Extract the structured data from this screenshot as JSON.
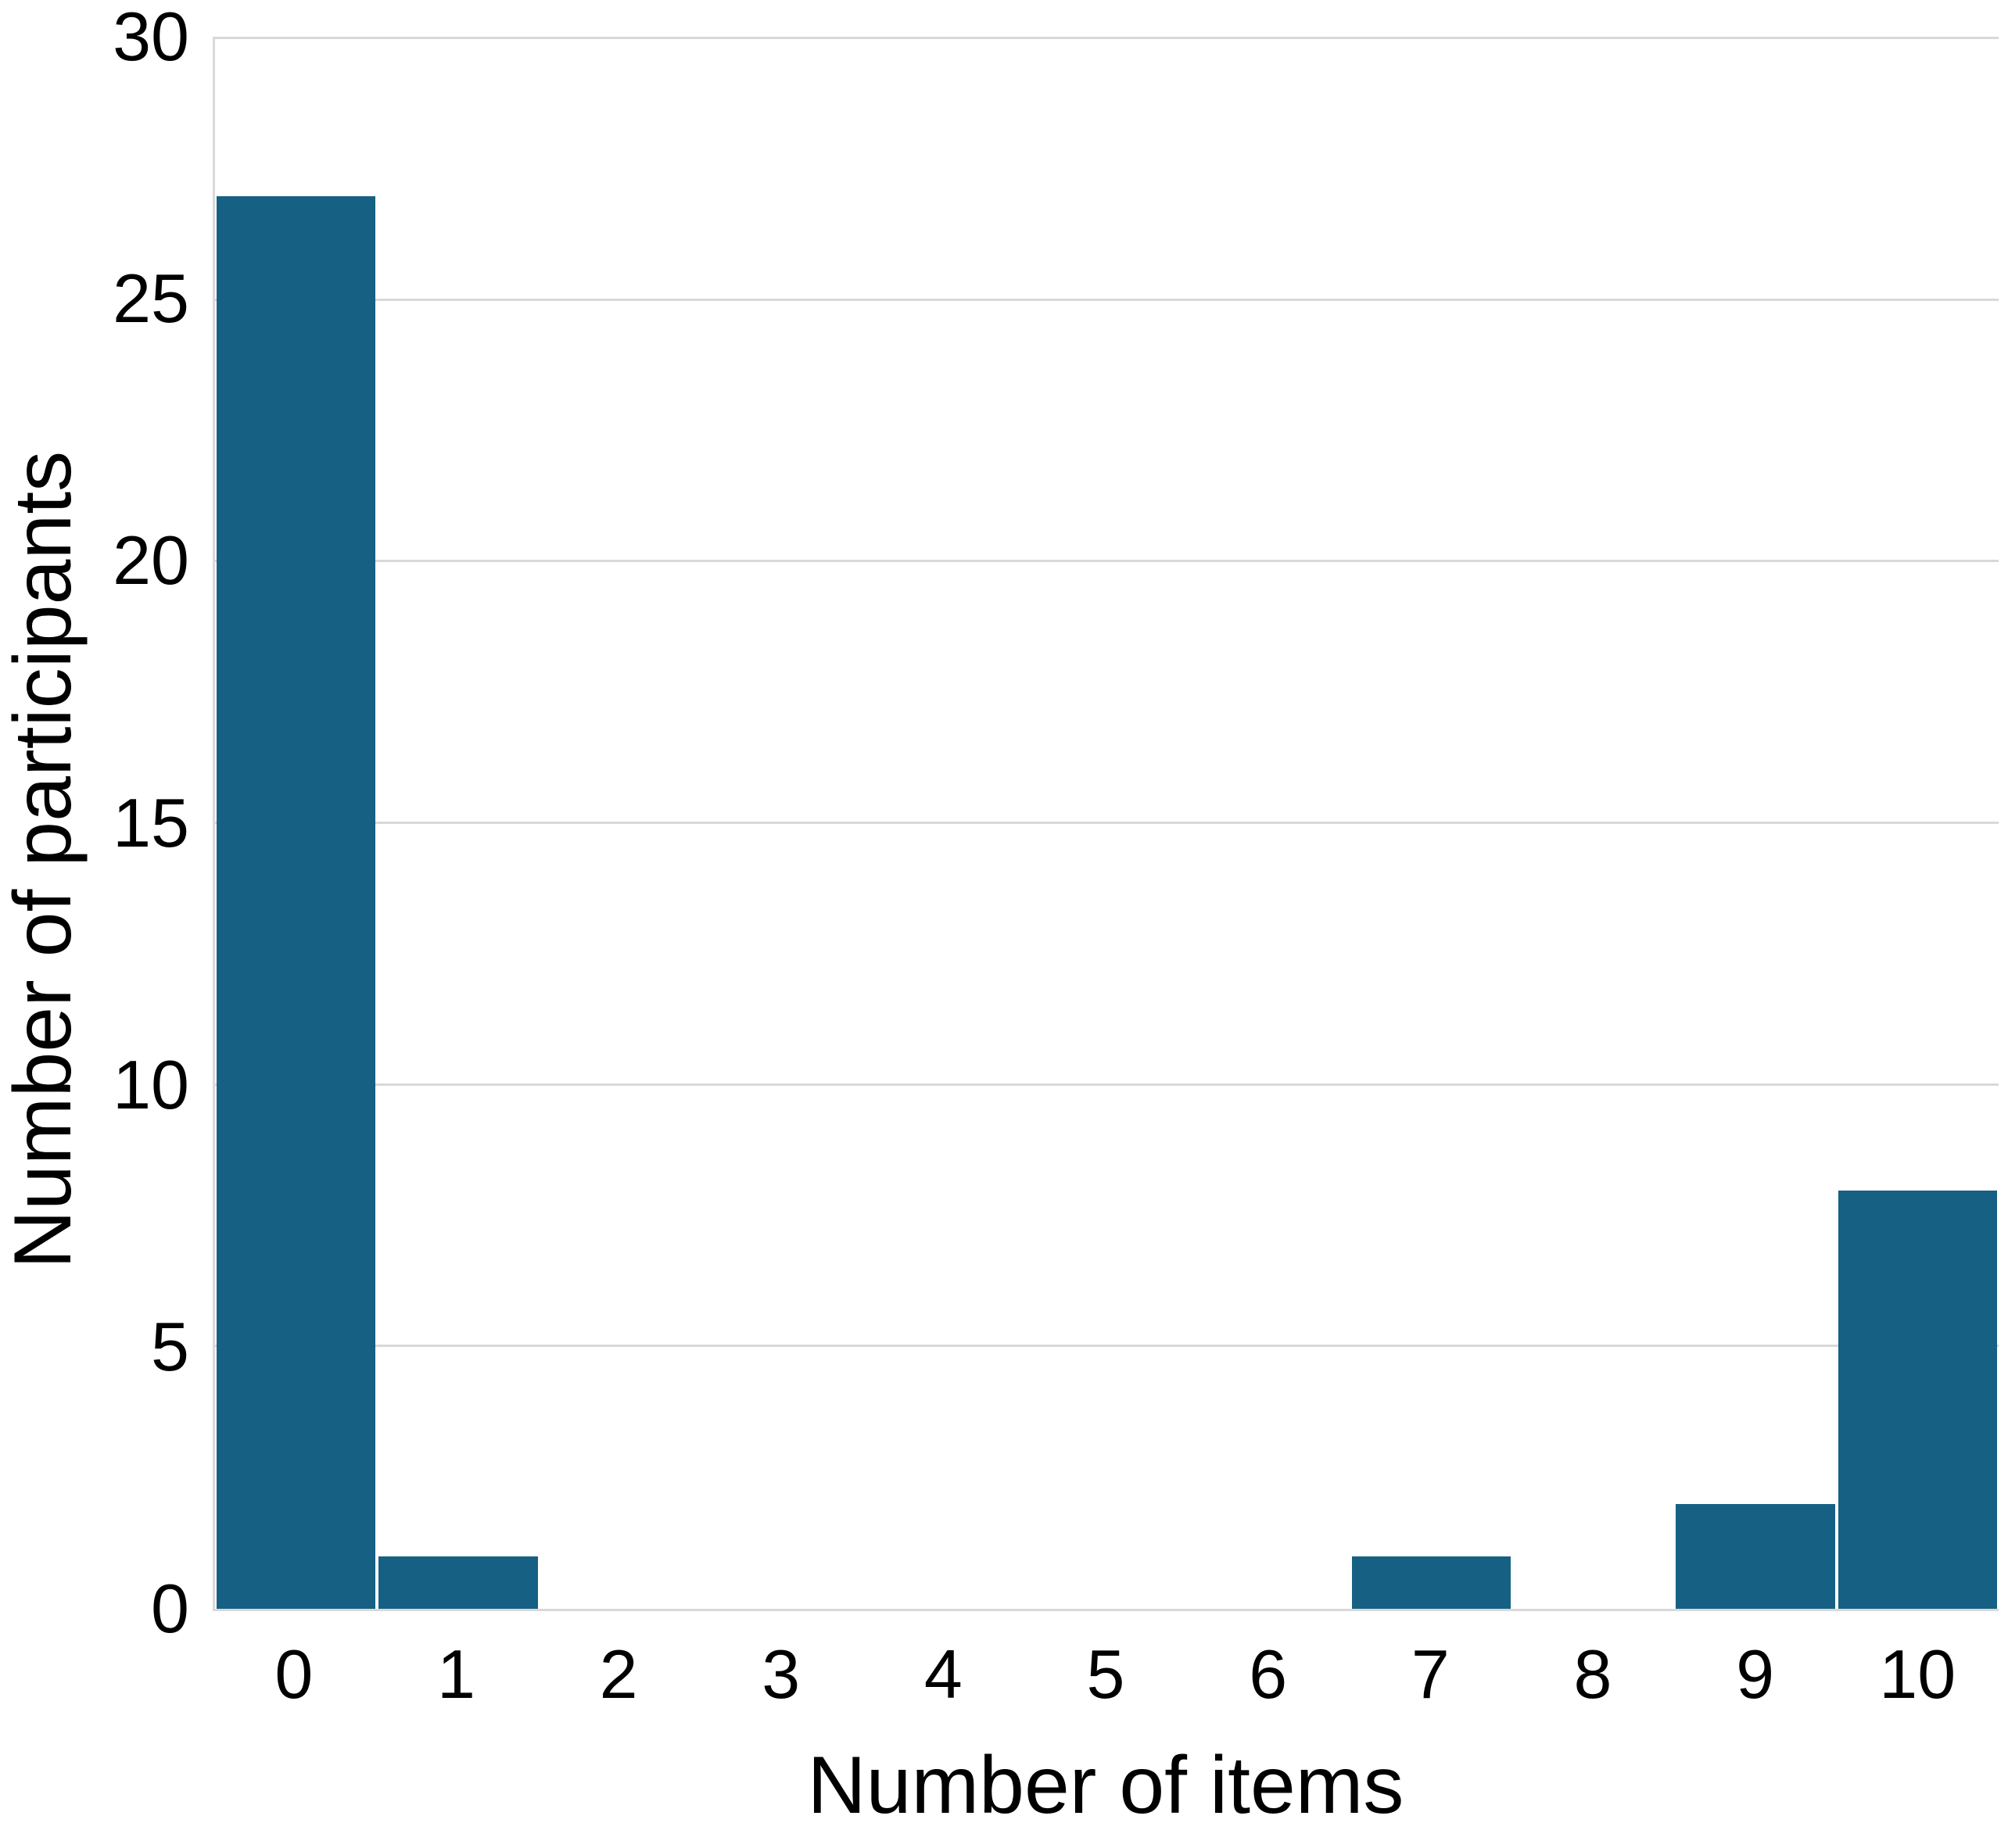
{
  "chart_data": {
    "type": "bar",
    "title": "",
    "xlabel": "Number of items",
    "ylabel": "Number of participants",
    "categories": [
      "0",
      "1",
      "2",
      "3",
      "4",
      "5",
      "6",
      "7",
      "8",
      "9",
      "10"
    ],
    "values": [
      27,
      1,
      0,
      0,
      0,
      0,
      0,
      1,
      0,
      2,
      8
    ],
    "ylim": [
      0,
      30
    ],
    "yticks": [
      0,
      5,
      10,
      15,
      20,
      25,
      30
    ],
    "grid": "horizontal",
    "legend": "none",
    "bar_color": "#166084",
    "gridline_color": "#d9d9d9",
    "axis_line_color": "#d9d9d9",
    "text_color": "#000000",
    "background_color": "#ffffff"
  }
}
